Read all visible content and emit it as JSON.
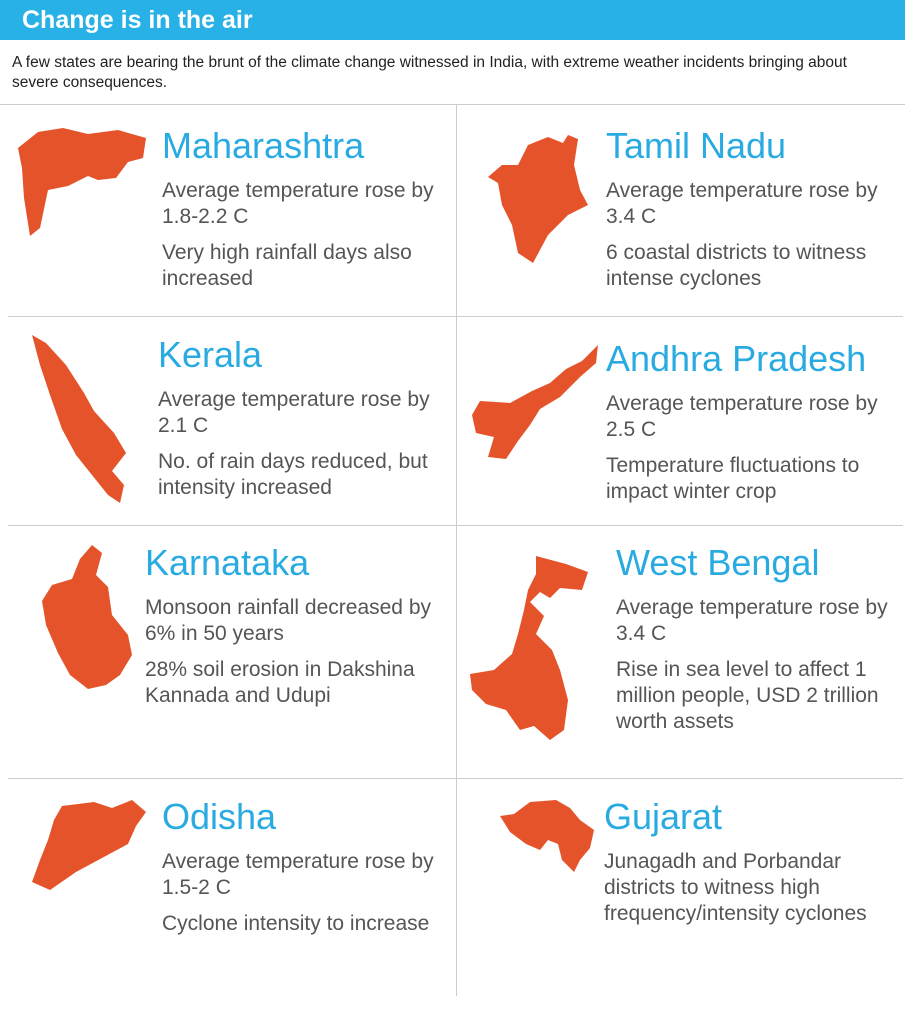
{
  "header": {
    "title": "Change is in the air",
    "subtitle": "A few states are bearing the brunt of the climate change witnessed in India, with extreme weather incidents bringing about severe consequences."
  },
  "states": [
    {
      "name": "Maharashtra",
      "facts": [
        "Average temperature rose by 1.8-2.2 C",
        "Very high rainfall days also increased"
      ]
    },
    {
      "name": "Tamil Nadu",
      "facts": [
        "Average temperature rose by 3.4 C",
        "6 coastal districts to witness intense cyclones"
      ]
    },
    {
      "name": "Kerala",
      "facts": [
        "Average temperature rose by 2.1 C",
        "No. of rain days reduced, but intensity increased"
      ]
    },
    {
      "name": "Andhra Pradesh",
      "facts": [
        "Average temperature rose by 2.5 C",
        "Temperature fluctuations to impact winter crop"
      ]
    },
    {
      "name": "Karnataka",
      "facts": [
        "Monsoon rainfall decreased by 6% in 50 years",
        "28% soil erosion in Dakshina Kannada and Udupi"
      ]
    },
    {
      "name": "West Bengal",
      "facts": [
        "Average temperature rose by 3.4 C",
        "Rise in sea level to affect 1 million people, USD 2 trillion worth assets"
      ]
    },
    {
      "name": "Odisha",
      "facts": [
        "Average temperature rose by 1.5-2 C",
        "Cyclone intensity to increase"
      ]
    },
    {
      "name": "Gujarat",
      "facts": [
        "Junagadh and Porbandar districts to witness high frequency/intensity cyclones"
      ]
    }
  ]
}
